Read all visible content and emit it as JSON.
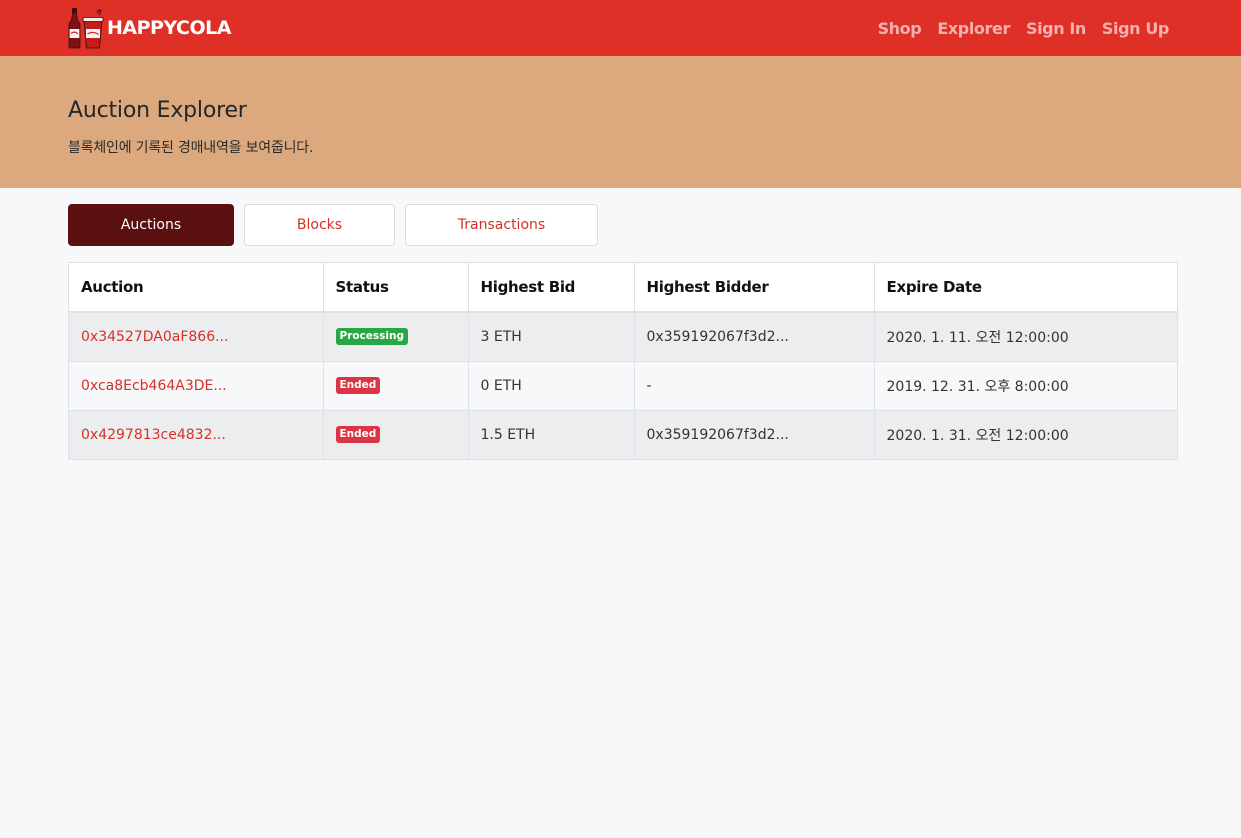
{
  "navbar": {
    "brand": "HAPPYCOLA",
    "links": [
      "Shop",
      "Explorer",
      "Sign In",
      "Sign Up"
    ]
  },
  "header": {
    "title": "Auction Explorer",
    "subtitle": "블록체인에 기록된 경매내역을 보여줍니다."
  },
  "tabs": [
    {
      "label": "Auctions",
      "active": true
    },
    {
      "label": "Blocks",
      "active": false
    },
    {
      "label": "Transactions",
      "active": false
    }
  ],
  "table": {
    "columns": [
      "Auction",
      "Status",
      "Highest Bid",
      "Highest Bidder",
      "Expire Date"
    ],
    "rows": [
      {
        "auction": "0x34527DA0aF866...",
        "status": "Processing",
        "status_kind": "success",
        "bid": "3 ETH",
        "bidder": "0x359192067f3d2...",
        "expire": "2020. 1. 11. 오전 12:00:00"
      },
      {
        "auction": "0xca8Ecb464A3DE...",
        "status": "Ended",
        "status_kind": "danger",
        "bid": "0 ETH",
        "bidder": "-",
        "expire": "2019. 12. 31. 오후 8:00:00"
      },
      {
        "auction": "0x4297813ce4832...",
        "status": "Ended",
        "status_kind": "danger",
        "bid": "1.5 ETH",
        "bidder": "0x359192067f3d2...",
        "expire": "2020. 1. 31. 오전 12:00:00"
      }
    ]
  },
  "colors": {
    "navbar": "#df3028",
    "jumbotron": "#dca97e",
    "active_tab": "#5a0f10",
    "link": "#d63028",
    "success": "#28a745",
    "danger": "#dc3545"
  }
}
